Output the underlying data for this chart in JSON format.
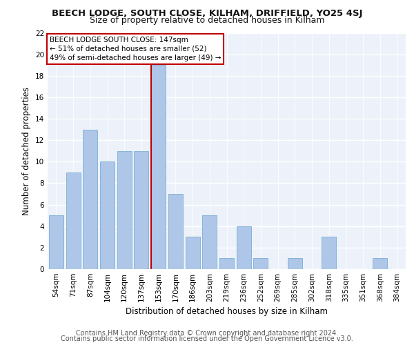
{
  "title1": "BEECH LODGE, SOUTH CLOSE, KILHAM, DRIFFIELD, YO25 4SJ",
  "title2": "Size of property relative to detached houses in Kilham",
  "xlabel": "Distribution of detached houses by size in Kilham",
  "ylabel": "Number of detached properties",
  "categories": [
    "54sqm",
    "71sqm",
    "87sqm",
    "104sqm",
    "120sqm",
    "137sqm",
    "153sqm",
    "170sqm",
    "186sqm",
    "203sqm",
    "219sqm",
    "236sqm",
    "252sqm",
    "269sqm",
    "285sqm",
    "302sqm",
    "318sqm",
    "335sqm",
    "351sqm",
    "368sqm",
    "384sqm"
  ],
  "values": [
    5,
    9,
    13,
    10,
    11,
    11,
    19,
    7,
    3,
    5,
    1,
    4,
    1,
    0,
    1,
    0,
    3,
    0,
    0,
    1,
    0
  ],
  "bar_color": "#aec6e8",
  "bar_edge_color": "#7aafd4",
  "highlight_color": "#c00000",
  "annotation_line1": "BEECH LODGE SOUTH CLOSE: 147sqm",
  "annotation_line2": "← 51% of detached houses are smaller (52)",
  "annotation_line3": "49% of semi-detached houses are larger (49) →",
  "annotation_box_color": "#ffffff",
  "annotation_box_edge_color": "#c00000",
  "vline_bar_index": 6,
  "ylim": [
    0,
    22
  ],
  "yticks": [
    0,
    2,
    4,
    6,
    8,
    10,
    12,
    14,
    16,
    18,
    20,
    22
  ],
  "background_color": "#edf2fa",
  "footer_line1": "Contains HM Land Registry data © Crown copyright and database right 2024.",
  "footer_line2": "Contains public sector information licensed under the Open Government Licence v3.0.",
  "title_fontsize": 9.5,
  "subtitle_fontsize": 9,
  "axis_label_fontsize": 8.5,
  "tick_fontsize": 7.5,
  "annot_fontsize": 7.5,
  "footer_fontsize": 7
}
